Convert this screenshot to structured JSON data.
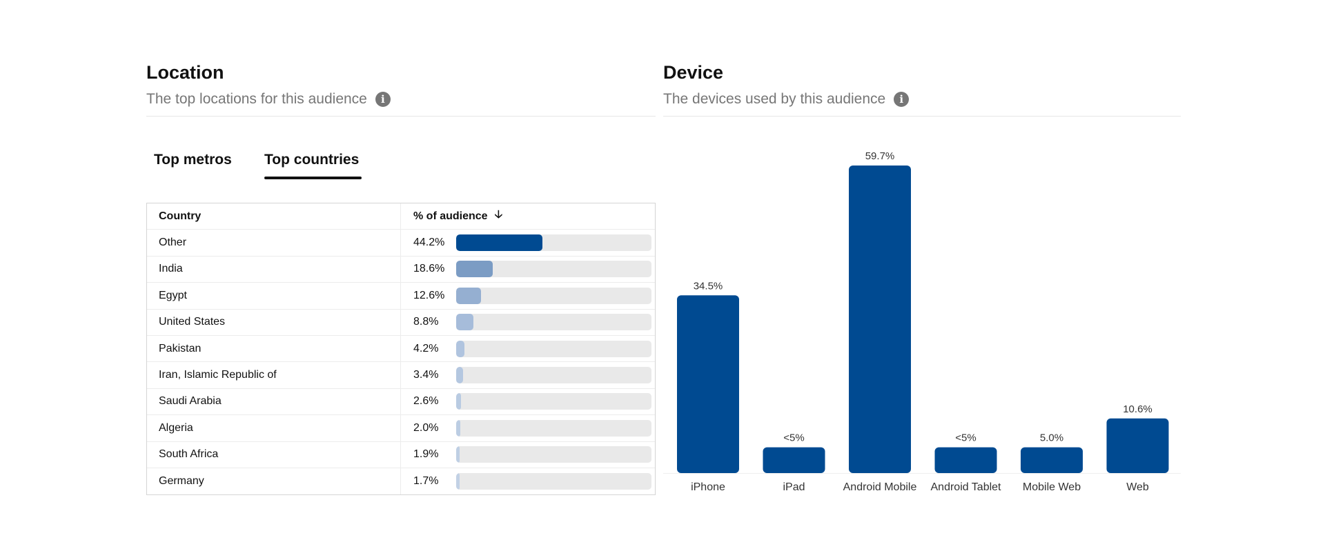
{
  "location": {
    "title": "Location",
    "subtitle": "The top locations for this audience",
    "tabs": [
      "Top metros",
      "Top countries"
    ],
    "active_tab": "Top countries",
    "table": {
      "headers": [
        "Country",
        "% of audience"
      ],
      "sort_icon": "arrow-down-icon",
      "rows": [
        {
          "country": "Other",
          "pct_label": "44.2%",
          "pct": 44.2,
          "color": "#004a91"
        },
        {
          "country": "India",
          "pct_label": "18.6%",
          "pct": 18.6,
          "color": "#7b9cc4"
        },
        {
          "country": "Egypt",
          "pct_label": "12.6%",
          "pct": 12.6,
          "color": "#95afd1"
        },
        {
          "country": "United States",
          "pct_label": "8.8%",
          "pct": 8.8,
          "color": "#a6bcda"
        },
        {
          "country": "Pakistan",
          "pct_label": "4.2%",
          "pct": 4.2,
          "color": "#b0c4df"
        },
        {
          "country": "Iran, Islamic Republic of",
          "pct_label": "3.4%",
          "pct": 3.4,
          "color": "#b4c7e0"
        },
        {
          "country": "Saudi Arabia",
          "pct_label": "2.6%",
          "pct": 2.6,
          "color": "#b9cbe2"
        },
        {
          "country": "Algeria",
          "pct_label": "2.0%",
          "pct": 2.0,
          "color": "#bccde3"
        },
        {
          "country": "South Africa",
          "pct_label": "1.9%",
          "pct": 1.9,
          "color": "#bfcfe4"
        },
        {
          "country": "Germany",
          "pct_label": "1.7%",
          "pct": 1.7,
          "color": "#c2d1e5"
        }
      ]
    }
  },
  "device": {
    "title": "Device",
    "subtitle": "The devices used by this audience"
  },
  "chart_data": {
    "type": "bar",
    "title": "Device",
    "categories": [
      "iPhone",
      "iPad",
      "Android Mobile",
      "Android Tablet",
      "Mobile Web",
      "Web"
    ],
    "values": [
      34.5,
      5,
      59.7,
      5,
      5.0,
      10.6
    ],
    "labels": [
      "34.5%",
      "<5%",
      "59.7%",
      "<5%",
      "5.0%",
      "10.6%"
    ],
    "ylim": [
      0,
      60
    ],
    "color": "#004a91",
    "grid": false,
    "xlabel": "",
    "ylabel": ""
  }
}
